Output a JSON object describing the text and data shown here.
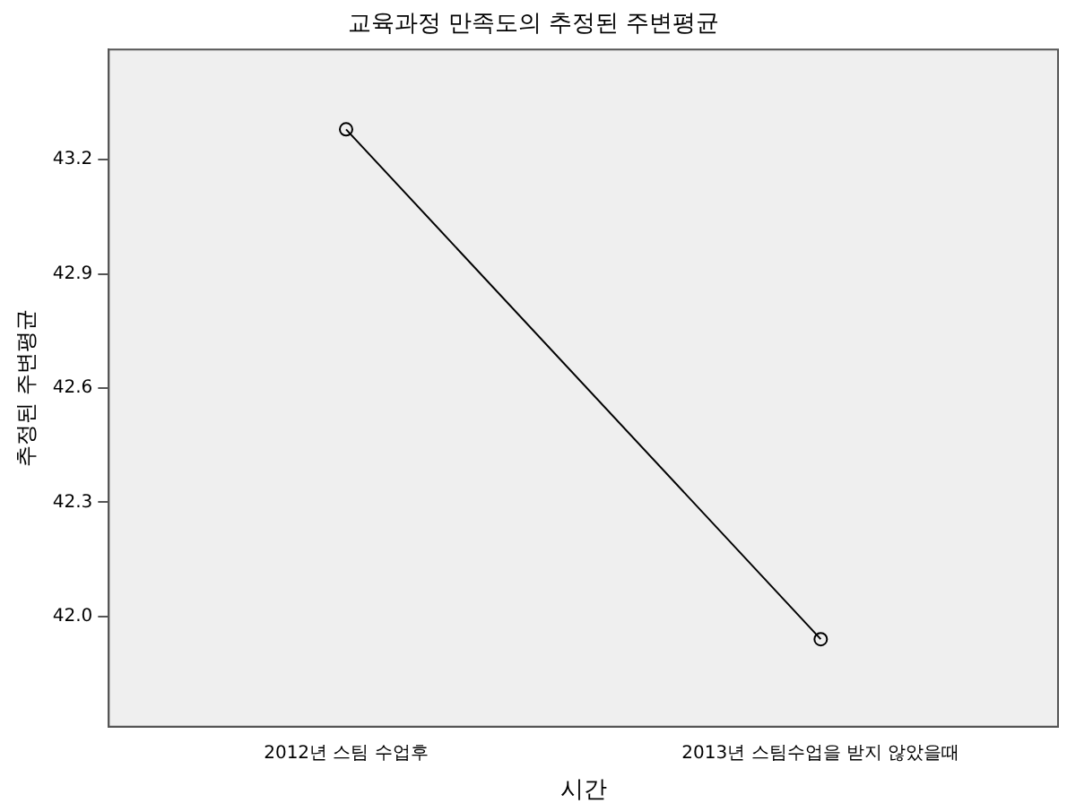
{
  "chart_data": {
    "type": "line",
    "title": "교육과정 만족도의 추정된 주변평균",
    "xlabel": "시간",
    "ylabel": "추정된 주변평균",
    "categories": [
      "2012년 스팀 수업후",
      "2013년 스팀수업을 받지 않았을때"
    ],
    "series": [
      {
        "color": "#000000",
        "values": [
          43.28,
          41.94
        ]
      }
    ],
    "ylim": [
      41.71,
      43.49
    ],
    "yticks": [
      {
        "value": 42,
        "label": "42.0"
      },
      42.3,
      42.6,
      42.9,
      43.2
    ],
    "grid": false,
    "legend": false,
    "marker": "circle",
    "line_style": "solid"
  }
}
